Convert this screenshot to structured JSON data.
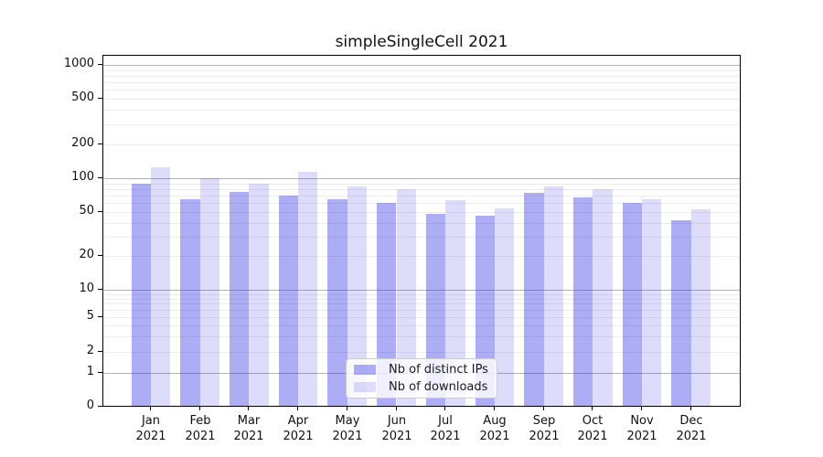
{
  "chart_data": {
    "type": "bar",
    "title": "simpleSingleCell 2021",
    "categories": [
      "Jan 2021",
      "Feb 2021",
      "Mar 2021",
      "Apr 2021",
      "May 2021",
      "Jun 2021",
      "Jul 2021",
      "Aug 2021",
      "Sep 2021",
      "Oct 2021",
      "Nov 2021",
      "Dec 2021"
    ],
    "series": [
      {
        "name": "Nb of distinct IPs",
        "color": "rgba(51,51,230,0.40)",
        "color_hex_on_white": "#adadf7",
        "values": [
          89,
          65,
          75,
          70,
          65,
          60,
          48,
          46,
          74,
          67,
          60,
          42
        ]
      },
      {
        "name": "Nb of downloads",
        "color": "rgba(51,51,230,0.17)",
        "color_hex_on_white": "#dcdcfb",
        "values": [
          125,
          100,
          89,
          115,
          85,
          80,
          64,
          54,
          84,
          80,
          65,
          53
        ]
      }
    ],
    "xlabel": "",
    "ylabel": "",
    "yscale": "symlog",
    "yticks": [
      1000,
      500,
      200,
      100,
      50,
      20,
      10,
      5,
      2,
      1,
      0
    ],
    "ylim": [
      0,
      1200
    ],
    "grid": "horizontal; dark solid lines at powers of 10, light lines at other ticks and log minors",
    "legend_position": "lower center"
  },
  "colors": {
    "major_grid": "#b3b3b3",
    "minor_grid": "#ececec",
    "spine": "#000000",
    "text": "#111111",
    "legend_border": "#cccccc",
    "legend_background": "rgba(255,255,255,0.8)"
  }
}
